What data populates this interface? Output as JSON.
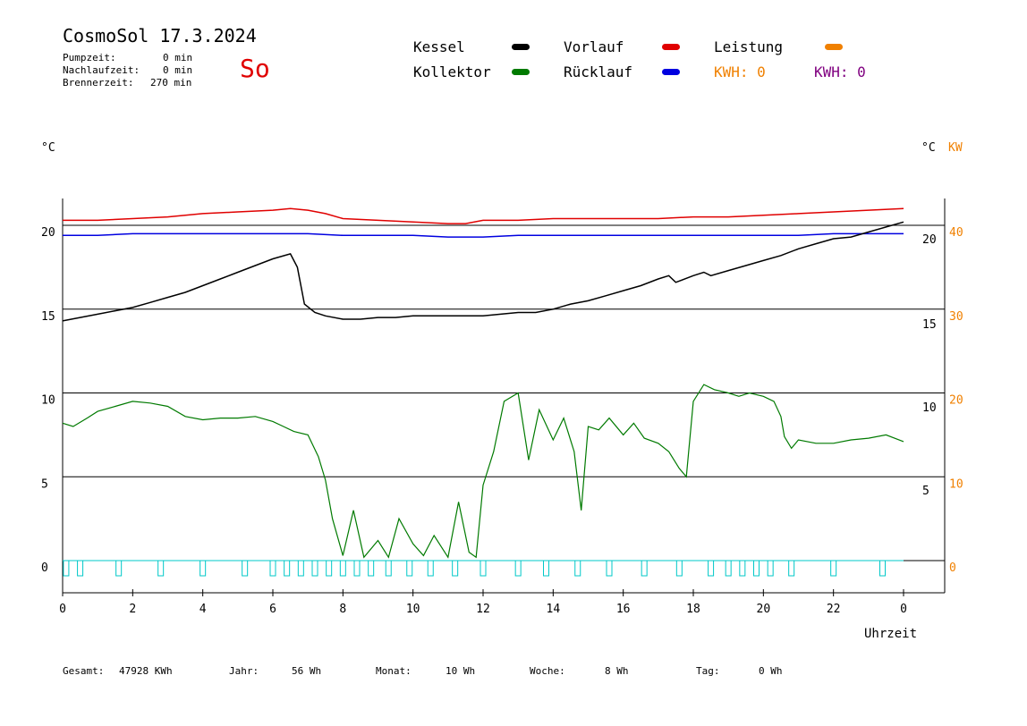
{
  "header": {
    "title": "CosmoSol 17.3.2024",
    "day": "So",
    "pumpzeit_label": "Pumpzeit:",
    "pumpzeit_value": "0 min",
    "nachlauf_label": "Nachlaufzeit:",
    "nachlauf_value": "0 min",
    "brenner_label": "Brennerzeit:",
    "brenner_value": "270 min"
  },
  "legend": {
    "kessel": "Kessel",
    "kollektor": "Kollektor",
    "vorlauf": "Vorlauf",
    "ruecklauf": "Rücklauf",
    "leistung": "Leistung",
    "kwh_1": "KWH: 0",
    "kwh_2": "KWH: 0"
  },
  "axes": {
    "left_unit": "°C",
    "right_unit_c": "°C",
    "right_unit_kw": "KW",
    "xlabel": "Uhrzeit"
  },
  "footer": {
    "gesamt_label": "Gesamt:",
    "gesamt_value": "47928 KWh",
    "jahr_label": "Jahr:",
    "jahr_value": "56 Wh",
    "monat_label": "Monat:",
    "monat_value": "10 Wh",
    "woche_label": "Woche:",
    "woche_value": "8 Wh",
    "tag_label": "Tag:",
    "tag_value": "0 Wh"
  },
  "colors": {
    "kessel": "#000000",
    "kollektor": "#007a00",
    "vorlauf": "#e00000",
    "ruecklauf": "#0000e0",
    "leistung": "#f08000",
    "kwh_2": "#800080",
    "pump": "#00c8c8"
  },
  "chart_data": {
    "type": "line",
    "title": "CosmoSol 17.3.2024",
    "xlabel": "Uhrzeit",
    "ylabel": "°C",
    "xlim": [
      0,
      24
    ],
    "ylim": [
      -1.5,
      21.5
    ],
    "y2lim": [
      -3,
      43
    ],
    "x_ticks": [
      "0",
      "2",
      "4",
      "6",
      "8",
      "10",
      "12",
      "14",
      "16",
      "18",
      "20",
      "22",
      "0"
    ],
    "y_ticks_left": [
      "0",
      "5",
      "10",
      "15",
      "20"
    ],
    "y_ticks_right_c": [
      "5",
      "10",
      "15",
      "20"
    ],
    "y_ticks_right_kw": [
      "0",
      "10",
      "20",
      "30",
      "40"
    ],
    "grid": true,
    "legend_position": "top",
    "series": [
      {
        "name": "Vorlauf",
        "x": [
          0,
          1,
          2,
          3,
          4,
          5,
          6,
          6.5,
          7,
          7.5,
          8,
          9,
          10,
          11,
          11.5,
          12,
          13,
          14,
          15,
          16,
          17,
          18,
          19,
          20,
          21,
          22,
          23,
          24
        ],
        "y": [
          20.3,
          20.3,
          20.4,
          20.5,
          20.7,
          20.8,
          20.9,
          21.0,
          20.9,
          20.7,
          20.4,
          20.3,
          20.2,
          20.1,
          20.1,
          20.3,
          20.3,
          20.4,
          20.4,
          20.4,
          20.4,
          20.5,
          20.5,
          20.6,
          20.7,
          20.8,
          20.9,
          21.0
        ]
      },
      {
        "name": "Rücklauf",
        "x": [
          0,
          1,
          2,
          3,
          4,
          5,
          6,
          7,
          8,
          9,
          10,
          11,
          12,
          13,
          14,
          15,
          16,
          17,
          18,
          19,
          20,
          21,
          22,
          23,
          24
        ],
        "y": [
          19.4,
          19.4,
          19.5,
          19.5,
          19.5,
          19.5,
          19.5,
          19.5,
          19.4,
          19.4,
          19.4,
          19.3,
          19.3,
          19.4,
          19.4,
          19.4,
          19.4,
          19.4,
          19.4,
          19.4,
          19.4,
          19.4,
          19.5,
          19.5,
          19.5
        ]
      },
      {
        "name": "Kessel",
        "x": [
          0,
          0.5,
          1,
          1.5,
          2,
          2.5,
          3,
          3.5,
          4,
          4.5,
          5,
          5.5,
          6,
          6.5,
          6.7,
          6.9,
          7.2,
          7.5,
          8,
          8.5,
          9,
          9.5,
          10,
          10.5,
          11,
          11.5,
          12,
          12.5,
          13,
          13.5,
          14,
          14.5,
          15,
          15.5,
          16,
          16.5,
          17,
          17.3,
          17.5,
          18,
          18.3,
          18.5,
          19,
          19.5,
          20,
          20.5,
          21,
          21.5,
          22,
          22.5,
          23,
          23.5,
          24
        ],
        "y": [
          14.3,
          14.5,
          14.7,
          14.9,
          15.1,
          15.4,
          15.7,
          16.0,
          16.4,
          16.8,
          17.2,
          17.6,
          18.0,
          18.3,
          17.5,
          15.3,
          14.8,
          14.6,
          14.4,
          14.4,
          14.5,
          14.5,
          14.6,
          14.6,
          14.6,
          14.6,
          14.6,
          14.7,
          14.8,
          14.8,
          15.0,
          15.3,
          15.5,
          15.8,
          16.1,
          16.4,
          16.8,
          17.0,
          16.6,
          17.0,
          17.2,
          17.0,
          17.3,
          17.6,
          17.9,
          18.2,
          18.6,
          18.9,
          19.2,
          19.3,
          19.6,
          19.9,
          20.2
        ]
      },
      {
        "name": "Kollektor",
        "x": [
          0,
          0.3,
          0.7,
          1,
          1.5,
          2,
          2.5,
          3,
          3.5,
          4,
          4.5,
          5,
          5.5,
          6,
          6.3,
          6.6,
          7,
          7.3,
          7.5,
          7.7,
          8,
          8.3,
          8.6,
          9,
          9.3,
          9.6,
          10,
          10.3,
          10.6,
          11,
          11.3,
          11.6,
          11.8,
          12,
          12.3,
          12.6,
          13,
          13.3,
          13.6,
          14,
          14.3,
          14.6,
          14.8,
          15,
          15.3,
          15.6,
          16,
          16.3,
          16.6,
          17,
          17.3,
          17.6,
          17.8,
          18,
          18.3,
          18.6,
          19,
          19.3,
          19.6,
          20,
          20.3,
          20.5,
          20.6,
          20.8,
          21,
          21.5,
          22,
          22.5,
          23,
          23.5,
          24
        ],
        "y": [
          8.2,
          8.0,
          8.5,
          8.9,
          9.2,
          9.5,
          9.4,
          9.2,
          8.6,
          8.4,
          8.5,
          8.5,
          8.6,
          8.3,
          8.0,
          7.7,
          7.5,
          6.2,
          4.8,
          2.5,
          0.3,
          3.0,
          0.2,
          1.2,
          0.2,
          2.5,
          1.0,
          0.3,
          1.5,
          0.2,
          3.5,
          0.5,
          0.2,
          4.5,
          6.5,
          9.5,
          10.0,
          6.0,
          9.0,
          7.2,
          8.5,
          6.5,
          3.0,
          8.0,
          7.8,
          8.5,
          7.5,
          8.2,
          7.3,
          7.0,
          6.5,
          5.5,
          5.0,
          9.5,
          10.5,
          10.2,
          10.0,
          9.8,
          10.0,
          9.8,
          9.5,
          8.6,
          7.4,
          6.7,
          7.2,
          7.0,
          7.0,
          7.2,
          7.3,
          7.5,
          7.1
        ]
      },
      {
        "name": "Pumpe",
        "x": [
          0.1,
          0.5,
          1.6,
          2.8,
          4.0,
          5.2,
          6.0,
          6.4,
          6.8,
          7.2,
          7.6,
          8.0,
          8.4,
          8.8,
          9.3,
          9.9,
          10.5,
          11.2,
          12.0,
          13.0,
          13.8,
          14.7,
          15.6,
          16.6,
          17.6,
          18.5,
          19.0,
          19.4,
          19.8,
          20.2,
          20.8,
          22.0,
          23.4
        ],
        "y": [
          1,
          1,
          1,
          1,
          1,
          1,
          1,
          1,
          1,
          1,
          1,
          1,
          1,
          1,
          1,
          1,
          1,
          1,
          1,
          1,
          1,
          1,
          1,
          1,
          1,
          1,
          1,
          1,
          1,
          1,
          1,
          1,
          1
        ]
      }
    ]
  }
}
